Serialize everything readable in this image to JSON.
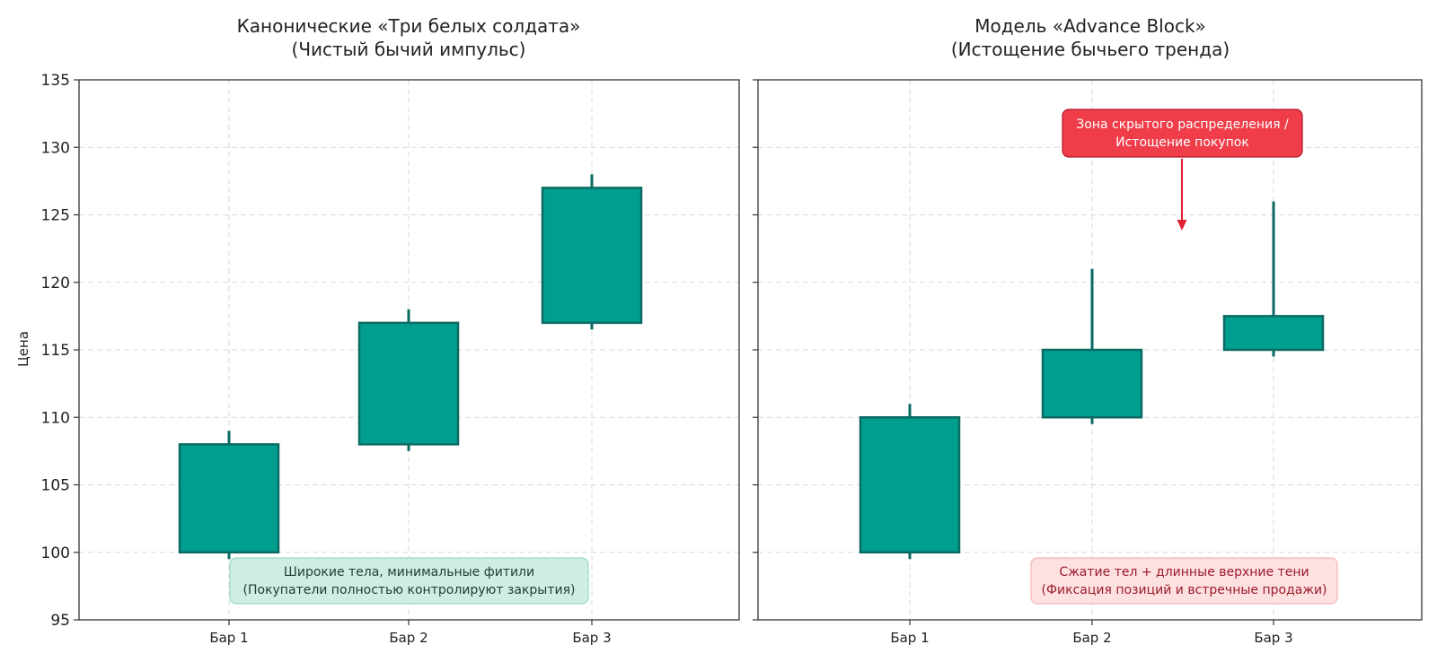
{
  "colors": {
    "candle_fill": "#009e8e",
    "candle_edge": "#0b6b63",
    "grid": "#d9d9d9",
    "green_box_fill": "#cdeee0",
    "green_box_edge": "#9ad9bf",
    "green_box_text": "#1f3d35",
    "red_box_fill": "#fde0e0",
    "red_box_edge": "#f5b5b8",
    "red_box_text": "#9b1c2c",
    "callout_fill": "#ef3e4a",
    "callout_edge": "#b5162a",
    "callout_text": "#ffffff",
    "arrow": "#e0202f"
  },
  "chart_data": [
    {
      "type": "candlestick",
      "title": [
        "Канонические «Три белых солдата»",
        "(Чистый бычий импульс)"
      ],
      "ylabel": "Цена",
      "ylim": [
        95,
        135
      ],
      "yticks": [
        "95",
        "100",
        "105",
        "110",
        "115",
        "120",
        "125",
        "130",
        "135"
      ],
      "grid": true,
      "categories": [
        "Бар 1",
        "Бар 2",
        "Бар 3"
      ],
      "candles": [
        {
          "open": 100,
          "close": 108,
          "high": 109,
          "low": 99.5
        },
        {
          "open": 108,
          "close": 117,
          "high": 118,
          "low": 107.5
        },
        {
          "open": 117,
          "close": 127,
          "high": 128,
          "low": 116.5
        }
      ],
      "annotation": {
        "lines": [
          "Широкие тела, минимальные фитили",
          "(Покупатели полностью контролируют закрытия)"
        ],
        "style": "green"
      }
    },
    {
      "type": "candlestick",
      "title": [
        "Модель «Advance Block»",
        "(Истощение бычьего тренда)"
      ],
      "ylabel": "",
      "ylim": [
        95,
        135
      ],
      "grid": true,
      "categories": [
        "Бар 1",
        "Бар 2",
        "Бар 3"
      ],
      "candles": [
        {
          "open": 100,
          "close": 110,
          "high": 111,
          "low": 99.5
        },
        {
          "open": 110,
          "close": 115,
          "high": 121,
          "low": 109.5
        },
        {
          "open": 115,
          "close": 117.5,
          "high": 126,
          "low": 114.5
        }
      ],
      "annotation": {
        "lines": [
          "Сжатие тел + длинные верхние тени",
          "(Фиксация позиций и встречные продажи)"
        ],
        "style": "red"
      },
      "callout": {
        "lines": [
          "Зона скрытого распределения /",
          "Истощение покупок"
        ],
        "arrow_target": {
          "x": 2.5,
          "y": 124
        }
      }
    }
  ]
}
